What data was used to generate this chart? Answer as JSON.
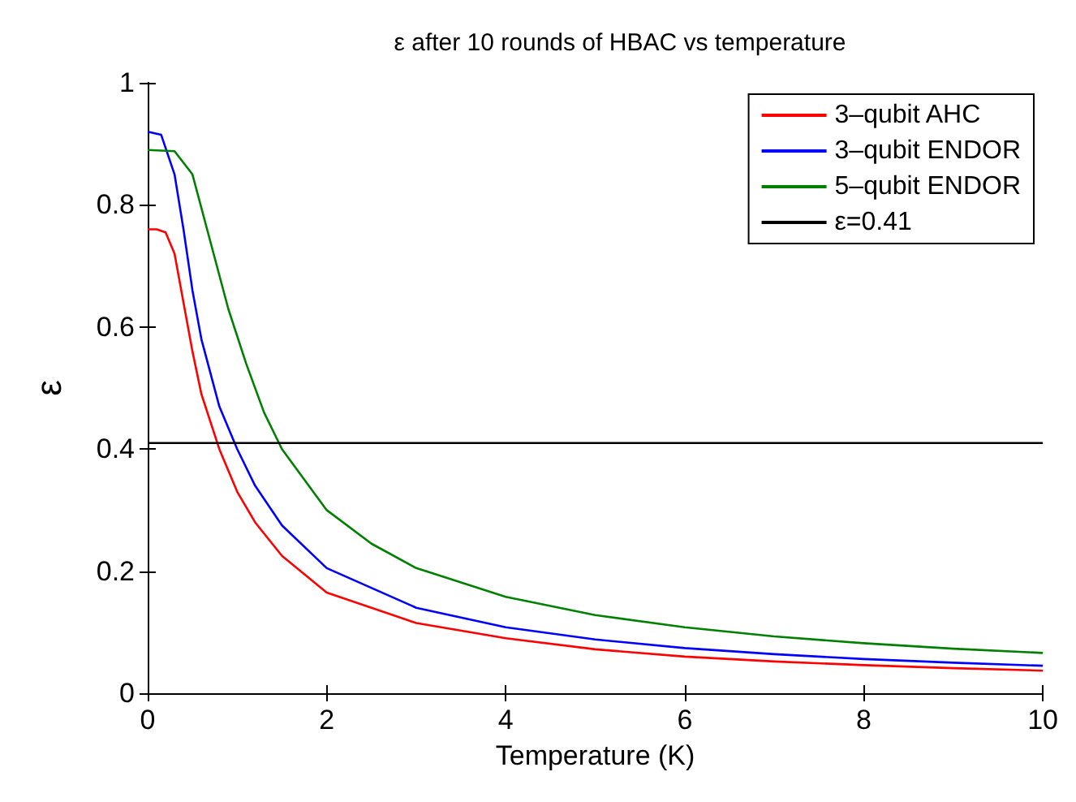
{
  "chart_data": {
    "type": "line",
    "title": "ε after 10 rounds of HBAC vs temperature",
    "xlabel": "Temperature (K)",
    "ylabel": "ε",
    "xlim": [
      0,
      10
    ],
    "xticks": [
      0,
      2,
      4,
      6,
      8,
      10
    ],
    "ylim": [
      0,
      1
    ],
    "yticks": [
      0,
      0.2,
      0.4,
      0.6,
      0.8,
      1
    ],
    "grid": false,
    "legend": "top right",
    "marker": "none",
    "line_style": "solid",
    "series": [
      {
        "name": "3‒qubit AHC",
        "color": "#ff0000",
        "x": [
          0,
          0.1,
          0.2,
          0.3,
          0.4,
          0.5,
          0.6,
          0.8,
          1,
          1.2,
          1.5,
          2,
          3,
          4,
          5,
          6,
          7,
          8,
          9,
          10
        ],
        "values": [
          0.76,
          0.76,
          0.755,
          0.72,
          0.64,
          0.56,
          0.49,
          0.4,
          0.33,
          0.28,
          0.225,
          0.165,
          0.115,
          0.09,
          0.072,
          0.06,
          0.052,
          0.046,
          0.041,
          0.037
        ]
      },
      {
        "name": "3‒qubit ENDOR",
        "color": "#0000ff",
        "x": [
          0,
          0.15,
          0.3,
          0.4,
          0.5,
          0.6,
          0.8,
          1,
          1.2,
          1.5,
          2,
          3,
          4,
          5,
          6,
          7,
          8,
          9,
          10
        ],
        "values": [
          0.92,
          0.915,
          0.85,
          0.76,
          0.66,
          0.58,
          0.47,
          0.4,
          0.34,
          0.275,
          0.205,
          0.14,
          0.108,
          0.088,
          0.074,
          0.064,
          0.056,
          0.05,
          0.045
        ]
      },
      {
        "name": "5‒qubit ENDOR",
        "color": "#008000",
        "x": [
          0,
          0.3,
          0.5,
          0.7,
          0.9,
          1.1,
          1.3,
          1.5,
          2,
          2.5,
          3,
          4,
          5,
          6,
          7,
          8,
          9,
          10
        ],
        "values": [
          0.89,
          0.888,
          0.85,
          0.74,
          0.63,
          0.54,
          0.46,
          0.4,
          0.3,
          0.245,
          0.205,
          0.158,
          0.128,
          0.108,
          0.093,
          0.082,
          0.073,
          0.066
        ]
      }
    ],
    "ref_lines": [
      {
        "axis": "y",
        "value": 0.41,
        "label": "ε=0.41",
        "color": "#000000"
      }
    ]
  }
}
